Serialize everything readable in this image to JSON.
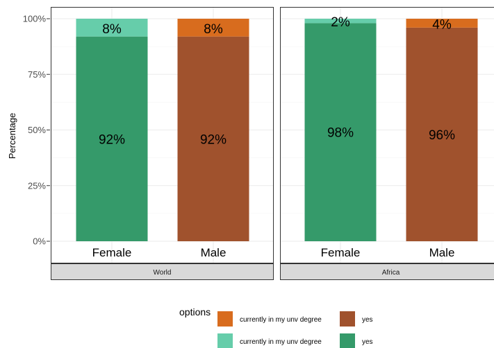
{
  "chart_data": {
    "type": "bar",
    "stacked": true,
    "ylabel": "Percentage",
    "ylim": [
      0,
      100
    ],
    "y_ticks": [
      "0%",
      "25%",
      "50%",
      "75%",
      "100%"
    ],
    "y_tick_values": [
      0,
      25,
      50,
      75,
      100
    ],
    "grid": true,
    "legend_position": "bottom",
    "legend": {
      "title": "options",
      "entries": [
        {
          "label": "currently in my unv degree",
          "color": "#D86C1E"
        },
        {
          "label": "yes",
          "color": "#A0522D"
        },
        {
          "label": "currently in my unv degree",
          "color": "#66CDAA"
        },
        {
          "label": "yes",
          "color": "#359A6A"
        }
      ]
    },
    "panels": [
      {
        "name": "World",
        "bars": [
          {
            "category": "Female",
            "segments": [
              {
                "option": "yes",
                "value": 92,
                "label": "92%",
                "color": "#359A6A"
              },
              {
                "option": "currently in my unv degree",
                "value": 8,
                "label": "8%",
                "color": "#66CDAA"
              }
            ]
          },
          {
            "category": "Male",
            "segments": [
              {
                "option": "yes",
                "value": 92,
                "label": "92%",
                "color": "#A0522D"
              },
              {
                "option": "currently in my unv degree",
                "value": 8,
                "label": "8%",
                "color": "#D86C1E"
              }
            ]
          }
        ]
      },
      {
        "name": "Africa",
        "bars": [
          {
            "category": "Female",
            "segments": [
              {
                "option": "yes",
                "value": 98,
                "label": "98%",
                "color": "#359A6A"
              },
              {
                "option": "currently in my unv degree",
                "value": 2,
                "label": "2%",
                "color": "#66CDAA"
              }
            ]
          },
          {
            "category": "Male",
            "segments": [
              {
                "option": "yes",
                "value": 96,
                "label": "96%",
                "color": "#A0522D"
              },
              {
                "option": "currently in my unv degree",
                "value": 4,
                "label": "4%",
                "color": "#D86C1E"
              }
            ]
          }
        ]
      }
    ]
  }
}
